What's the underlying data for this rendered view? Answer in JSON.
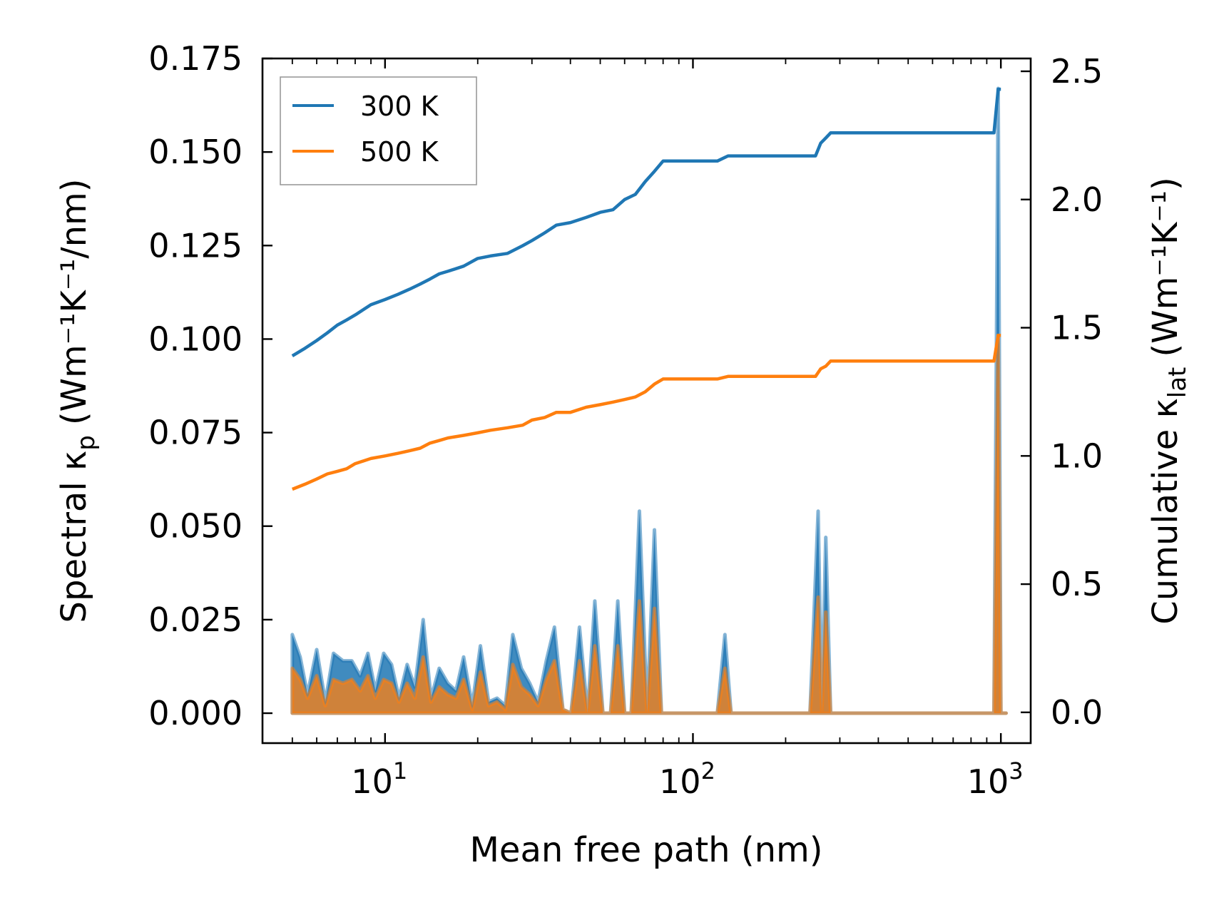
{
  "chart_data": {
    "type": "line",
    "title": "",
    "xlabel": "Mean free path (nm)",
    "ylabel_left": {
      "main": "Spectral κ",
      "sub": "p",
      "units": "(Wm⁻¹K⁻¹/nm)"
    },
    "ylabel_right": {
      "main": "Cumulative κ",
      "sub": "lat",
      "units": "(Wm⁻¹K⁻¹)"
    },
    "xscale": "log",
    "xlim": [
      4.0,
      1250
    ],
    "x_ticks": [
      {
        "value": 10,
        "base": "10",
        "exp": "1"
      },
      {
        "value": 100,
        "base": "10",
        "exp": "2"
      },
      {
        "value": 1000,
        "base": "10",
        "exp": "3"
      }
    ],
    "ylim_left": [
      -0.008,
      0.175
    ],
    "ylim_right": [
      -0.12,
      2.55
    ],
    "left_ticks": [
      "0.000",
      "0.025",
      "0.050",
      "0.075",
      "0.100",
      "0.125",
      "0.150",
      "0.175"
    ],
    "right_ticks": [
      "0.0",
      "0.5",
      "1.0",
      "1.5",
      "2.0",
      "2.5"
    ],
    "legend": {
      "placement": "top-left",
      "entries": [
        "300 K",
        "500 K"
      ]
    },
    "series": [
      {
        "name": "300 K",
        "color": "#1f77b4",
        "axis": "right",
        "kind": "cumulative",
        "x": [
          5,
          5.5,
          6,
          6.5,
          7,
          7.5,
          8,
          9,
          10,
          11,
          12,
          13,
          14,
          15,
          16,
          18,
          20,
          22,
          25,
          28,
          30,
          33,
          36,
          40,
          45,
          50,
          55,
          60,
          65,
          70,
          75,
          80,
          90,
          100,
          120,
          130,
          150,
          200,
          250,
          260,
          270,
          280,
          300,
          400,
          600,
          800,
          950,
          980,
          1000
        ],
        "values": [
          1.39,
          1.42,
          1.45,
          1.48,
          1.51,
          1.53,
          1.55,
          1.59,
          1.61,
          1.63,
          1.65,
          1.67,
          1.69,
          1.71,
          1.72,
          1.74,
          1.77,
          1.78,
          1.79,
          1.82,
          1.84,
          1.87,
          1.9,
          1.91,
          1.93,
          1.95,
          1.96,
          2.0,
          2.02,
          2.07,
          2.11,
          2.15,
          2.15,
          2.15,
          2.15,
          2.17,
          2.17,
          2.17,
          2.17,
          2.22,
          2.24,
          2.26,
          2.26,
          2.26,
          2.26,
          2.26,
          2.26,
          2.43,
          2.43
        ]
      },
      {
        "name": "500 K",
        "color": "#ff7f0e",
        "axis": "right",
        "kind": "cumulative",
        "x": [
          5,
          5.5,
          6,
          6.5,
          7,
          7.5,
          8,
          9,
          10,
          11,
          12,
          13,
          14,
          15,
          16,
          18,
          20,
          22,
          25,
          28,
          30,
          33,
          36,
          40,
          45,
          50,
          55,
          60,
          65,
          70,
          75,
          80,
          90,
          100,
          120,
          130,
          150,
          200,
          250,
          260,
          270,
          280,
          300,
          400,
          600,
          800,
          950,
          980,
          1000
        ],
        "values": [
          0.87,
          0.89,
          0.91,
          0.93,
          0.94,
          0.95,
          0.97,
          0.99,
          1.0,
          1.01,
          1.02,
          1.03,
          1.05,
          1.06,
          1.07,
          1.08,
          1.09,
          1.1,
          1.11,
          1.12,
          1.14,
          1.15,
          1.17,
          1.17,
          1.19,
          1.2,
          1.21,
          1.22,
          1.23,
          1.25,
          1.28,
          1.3,
          1.3,
          1.3,
          1.3,
          1.31,
          1.31,
          1.31,
          1.31,
          1.34,
          1.35,
          1.37,
          1.37,
          1.37,
          1.37,
          1.37,
          1.37,
          1.47,
          1.47
        ]
      },
      {
        "name": "300 K spectral",
        "color": "#1f77b4",
        "axis": "left",
        "kind": "spectral-fill",
        "x": [
          5,
          5.3,
          5.6,
          6,
          6.4,
          6.8,
          7.3,
          7.8,
          8.3,
          8.8,
          9.3,
          9.9,
          10.5,
          11.1,
          11.8,
          12.5,
          13.3,
          14.1,
          15,
          16,
          17,
          18,
          19.2,
          20.4,
          21.7,
          23.1,
          24.6,
          26,
          27.7,
          29.5,
          31.4,
          33.4,
          35.5,
          37.8,
          40.2,
          42.8,
          45.5,
          48,
          51,
          54,
          57,
          60,
          63,
          67,
          71,
          75,
          79,
          83,
          88,
          93,
          100,
          120,
          127,
          133,
          140,
          150,
          200,
          240,
          255,
          262,
          270,
          280,
          288,
          296,
          310,
          500,
          800,
          950,
          980,
          1000,
          1020,
          1040
        ],
        "values": [
          0.021,
          0.015,
          0.005,
          0.017,
          0.003,
          0.016,
          0.014,
          0.014,
          0.01,
          0.016,
          0.006,
          0.016,
          0.013,
          0.004,
          0.013,
          0.007,
          0.025,
          0.004,
          0.012,
          0.008,
          0.006,
          0.015,
          0.002,
          0.018,
          0.003,
          0.004,
          0.002,
          0.021,
          0.012,
          0.008,
          0.003,
          0.014,
          0.023,
          0.001,
          0.0,
          0.023,
          0.0,
          0.03,
          0.0,
          0.0,
          0.03,
          0.0,
          0.0,
          0.054,
          0.0,
          0.049,
          0.0,
          0.0,
          0.0,
          0.0,
          0.0,
          0.0,
          0.021,
          0.0,
          0.0,
          0.0,
          0.0,
          0.0,
          0.054,
          0.0,
          0.047,
          0.0,
          0.0,
          0.0,
          0.0,
          0.0,
          0.0,
          0.0,
          0.167,
          0.0,
          0.0,
          0.0
        ]
      },
      {
        "name": "500 K spectral",
        "color": "#ff7f0e",
        "axis": "left",
        "kind": "spectral-fill",
        "x": [
          5,
          5.3,
          5.6,
          6,
          6.4,
          6.8,
          7.3,
          7.8,
          8.3,
          8.8,
          9.3,
          9.9,
          10.5,
          11.1,
          11.8,
          12.5,
          13.3,
          14.1,
          15,
          16,
          17,
          18,
          19.2,
          20.4,
          21.7,
          23.1,
          24.6,
          26,
          27.7,
          29.5,
          31.4,
          33.4,
          35.5,
          37.8,
          40.2,
          42.8,
          45.5,
          48,
          51,
          54,
          57,
          60,
          63,
          67,
          71,
          75,
          79,
          83,
          88,
          93,
          100,
          120,
          127,
          133,
          140,
          150,
          200,
          240,
          255,
          262,
          270,
          280,
          288,
          296,
          310,
          500,
          800,
          950,
          980,
          1000,
          1020,
          1040
        ],
        "values": [
          0.012,
          0.009,
          0.004,
          0.01,
          0.002,
          0.009,
          0.008,
          0.009,
          0.006,
          0.01,
          0.004,
          0.009,
          0.008,
          0.003,
          0.008,
          0.004,
          0.015,
          0.003,
          0.007,
          0.005,
          0.004,
          0.009,
          0.001,
          0.011,
          0.002,
          0.003,
          0.001,
          0.013,
          0.007,
          0.005,
          0.002,
          0.009,
          0.014,
          0.001,
          0.0,
          0.014,
          0.0,
          0.018,
          0.0,
          0.0,
          0.018,
          0.0,
          0.0,
          0.03,
          0.0,
          0.028,
          0.0,
          0.0,
          0.0,
          0.0,
          0.0,
          0.0,
          0.012,
          0.0,
          0.0,
          0.0,
          0.0,
          0.0,
          0.031,
          0.0,
          0.027,
          0.0,
          0.0,
          0.0,
          0.0,
          0.0,
          0.0,
          0.0,
          0.101,
          0.0,
          0.0,
          0.0
        ]
      }
    ]
  }
}
